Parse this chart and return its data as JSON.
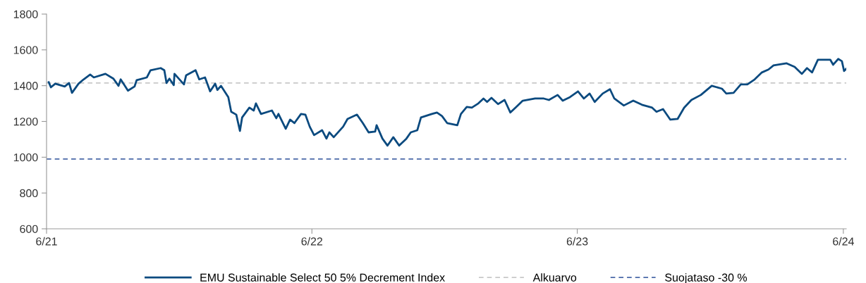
{
  "chart_data": {
    "type": "line",
    "xlim": [
      "2021-07-01",
      "2024-07-05"
    ],
    "ylim": [
      600,
      1800
    ],
    "xticks": [
      {
        "value": "2021-07-01",
        "label": "6/21"
      },
      {
        "value": "2022-07-01",
        "label": "6/22"
      },
      {
        "value": "2023-07-01",
        "label": "6/23"
      },
      {
        "value": "2024-07-01",
        "label": "6/24"
      }
    ],
    "yticks": [
      600,
      800,
      1000,
      1200,
      1400,
      1600,
      1800
    ],
    "grid": false,
    "legend": "bottom",
    "line_style": "solid",
    "marker": "none",
    "series": [
      {
        "name": "EMU Sustainable Select 50 5% Decrement Index",
        "color": "#0b4a7f",
        "x": [
          "2021-07-04",
          "2021-07-07",
          "2021-07-13",
          "2021-07-26",
          "2021-08-01",
          "2021-08-05",
          "2021-08-14",
          "2021-08-21",
          "2021-08-30",
          "2021-09-04",
          "2021-09-20",
          "2021-10-01",
          "2021-10-08",
          "2021-10-11",
          "2021-10-21",
          "2021-10-30",
          "2021-11-02",
          "2021-11-16",
          "2021-11-21",
          "2021-12-05",
          "2021-12-10",
          "2021-12-13",
          "2021-12-17",
          "2021-12-23",
          "2021-12-24",
          "2022-01-06",
          "2022-01-09",
          "2022-01-22",
          "2022-01-27",
          "2022-02-04",
          "2022-02-11",
          "2022-02-18",
          "2022-02-21",
          "2022-02-26",
          "2022-03-08",
          "2022-03-12",
          "2022-03-19",
          "2022-03-24",
          "2022-03-27",
          "2022-04-06",
          "2022-04-12",
          "2022-04-15",
          "2022-04-22",
          "2022-05-07",
          "2022-05-13",
          "2022-05-16",
          "2022-05-26",
          "2022-06-01",
          "2022-06-07",
          "2022-06-16",
          "2022-06-22",
          "2022-06-28",
          "2022-07-04",
          "2022-07-15",
          "2022-07-21",
          "2022-07-25",
          "2022-07-31",
          "2022-08-13",
          "2022-08-19",
          "2022-09-01",
          "2022-09-09",
          "2022-09-17",
          "2022-09-26",
          "2022-09-28",
          "2022-10-06",
          "2022-10-13",
          "2022-10-21",
          "2022-10-29",
          "2022-11-08",
          "2022-11-14",
          "2022-11-23",
          "2022-11-28",
          "2022-12-13",
          "2022-12-20",
          "2022-12-27",
          "2023-01-03",
          "2023-01-17",
          "2023-01-22",
          "2023-01-30",
          "2023-02-06",
          "2023-02-15",
          "2023-02-22",
          "2023-02-27",
          "2023-03-05",
          "2023-03-14",
          "2023-03-23",
          "2023-03-31",
          "2023-04-08",
          "2023-04-17",
          "2023-05-04",
          "2023-05-16",
          "2023-05-23",
          "2023-06-04",
          "2023-06-11",
          "2023-06-21",
          "2023-07-02",
          "2023-07-10",
          "2023-07-18",
          "2023-07-25",
          "2023-08-05",
          "2023-08-15",
          "2023-08-21",
          "2023-09-03",
          "2023-09-16",
          "2023-09-28",
          "2023-10-12",
          "2023-10-18",
          "2023-10-27",
          "2023-11-06",
          "2023-11-16",
          "2023-11-25",
          "2023-12-05",
          "2023-12-18",
          "2024-01-02",
          "2024-01-16",
          "2024-01-22",
          "2024-02-01",
          "2024-02-11",
          "2024-02-20",
          "2024-03-01",
          "2024-03-11",
          "2024-03-20",
          "2024-03-27",
          "2024-04-14",
          "2024-04-25",
          "2024-05-05",
          "2024-05-12",
          "2024-05-19",
          "2024-05-27",
          "2024-06-13",
          "2024-06-17",
          "2024-06-24",
          "2024-06-29",
          "2024-07-02",
          "2024-07-05"
        ],
        "values": [
          1419,
          1391,
          1411,
          1395,
          1415,
          1360,
          1411,
          1435,
          1462,
          1446,
          1466,
          1439,
          1399,
          1435,
          1372,
          1395,
          1431,
          1446,
          1486,
          1498,
          1486,
          1415,
          1439,
          1403,
          1466,
          1407,
          1458,
          1486,
          1435,
          1446,
          1368,
          1411,
          1376,
          1399,
          1336,
          1254,
          1238,
          1147,
          1222,
          1277,
          1261,
          1301,
          1242,
          1261,
          1218,
          1242,
          1159,
          1210,
          1191,
          1242,
          1238,
          1171,
          1124,
          1151,
          1104,
          1139,
          1112,
          1171,
          1214,
          1238,
          1191,
          1139,
          1143,
          1179,
          1104,
          1065,
          1112,
          1065,
          1104,
          1139,
          1151,
          1222,
          1242,
          1250,
          1230,
          1191,
          1179,
          1242,
          1281,
          1277,
          1301,
          1328,
          1309,
          1332,
          1297,
          1320,
          1250,
          1281,
          1316,
          1328,
          1328,
          1320,
          1348,
          1316,
          1336,
          1368,
          1328,
          1356,
          1309,
          1356,
          1380,
          1328,
          1289,
          1316,
          1293,
          1277,
          1254,
          1269,
          1210,
          1214,
          1277,
          1320,
          1348,
          1399,
          1383,
          1356,
          1360,
          1407,
          1407,
          1435,
          1474,
          1490,
          1513,
          1525,
          1505,
          1466,
          1498,
          1474,
          1545,
          1545,
          1517,
          1549,
          1537,
          1482,
          1494
        ]
      }
    ],
    "ref_lines": [
      {
        "axis": "y",
        "value": 1415,
        "label": "Alkuarvo",
        "color": "#c8c8c8",
        "line_style": "dashed"
      },
      {
        "axis": "y",
        "value": 990,
        "label": "Suojataso -30 %",
        "color": "#4a68a8",
        "line_style": "dashed"
      }
    ]
  }
}
